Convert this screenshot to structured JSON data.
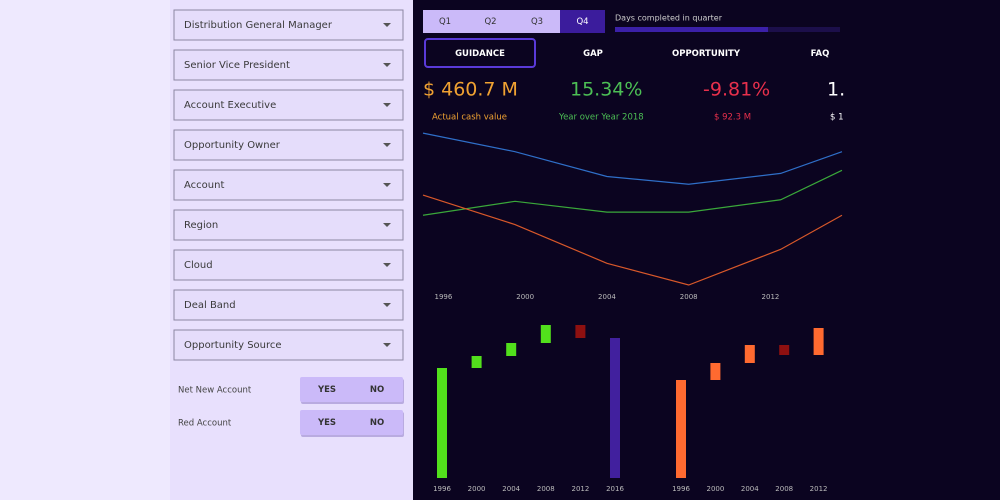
{
  "filters": [
    "Distribution General Manager",
    "Senior Vice President",
    "Account Executive",
    "Opportunity Owner",
    "Account",
    "Region",
    "Cloud",
    "Deal Band",
    "Opportunity Source"
  ],
  "toggles": [
    {
      "label": "Net New Account",
      "options": [
        "YES",
        "NO"
      ]
    },
    {
      "label": "Red Account",
      "options": [
        "YES",
        "NO"
      ]
    }
  ],
  "quarter_tabs": [
    "Q1",
    "Q2",
    "Q3",
    "Q4"
  ],
  "progress": {
    "label": "Days completed in quarter",
    "value": 68,
    "max": 100
  },
  "nav": [
    "GUIDANCE",
    "GAP",
    "OPPORTUNITY",
    "FAQ"
  ],
  "kpis": [
    {
      "value": "$ 460.7 M",
      "caption": "Actual cash value",
      "color": "#f0a232"
    },
    {
      "value": "15.34%",
      "caption": "Year over Year 2018",
      "color": "#4cbf55"
    },
    {
      "value": "-9.81%",
      "caption": "$ 92.3 M",
      "color": "#e8304c"
    },
    {
      "value": "1.",
      "caption": "$ 1",
      "color": "#ffffff"
    }
  ],
  "chart_data": [
    {
      "type": "line",
      "x": [
        1995,
        1999.5,
        2004,
        2008,
        2012.5,
        2015.5
      ],
      "xlim": [
        1995,
        2015.5
      ],
      "xticks": [
        1996,
        2000,
        2004,
        2008,
        2012
      ],
      "ylim": [
        0,
        100
      ],
      "series": [
        {
          "color": "#2f6fc8",
          "values": [
            98,
            86,
            70,
            65,
            72,
            86
          ]
        },
        {
          "color": "#3aa83a",
          "values": [
            45,
            54,
            47,
            47,
            55,
            74
          ]
        },
        {
          "color": "#d8582a",
          "values": [
            58,
            39,
            14,
            0,
            23,
            45
          ]
        }
      ]
    },
    {
      "type": "waterfall",
      "categories": [
        "1996",
        "2000",
        "2004",
        "2008",
        "2012",
        "2016"
      ],
      "values": [
        110,
        12,
        13,
        18,
        -13,
        140
      ],
      "measure": [
        "relative",
        "relative",
        "relative",
        "relative",
        "relative",
        "total"
      ],
      "ylim": [
        0,
        160
      ],
      "increase_color": "#52e01c",
      "decrease_color": "#8e1010",
      "total_color": "#41209e"
    },
    {
      "type": "waterfall",
      "categories": [
        "1996",
        "2000",
        "2004",
        "2008",
        "2012"
      ],
      "values": [
        98,
        17,
        18,
        -10,
        27
      ],
      "measure": [
        "relative",
        "relative",
        "relative",
        "relative",
        "relative"
      ],
      "ylim": [
        0,
        160
      ],
      "increase_color": "#ff6a30",
      "decrease_color": "#8e1010",
      "total_color": "#41209e"
    }
  ]
}
